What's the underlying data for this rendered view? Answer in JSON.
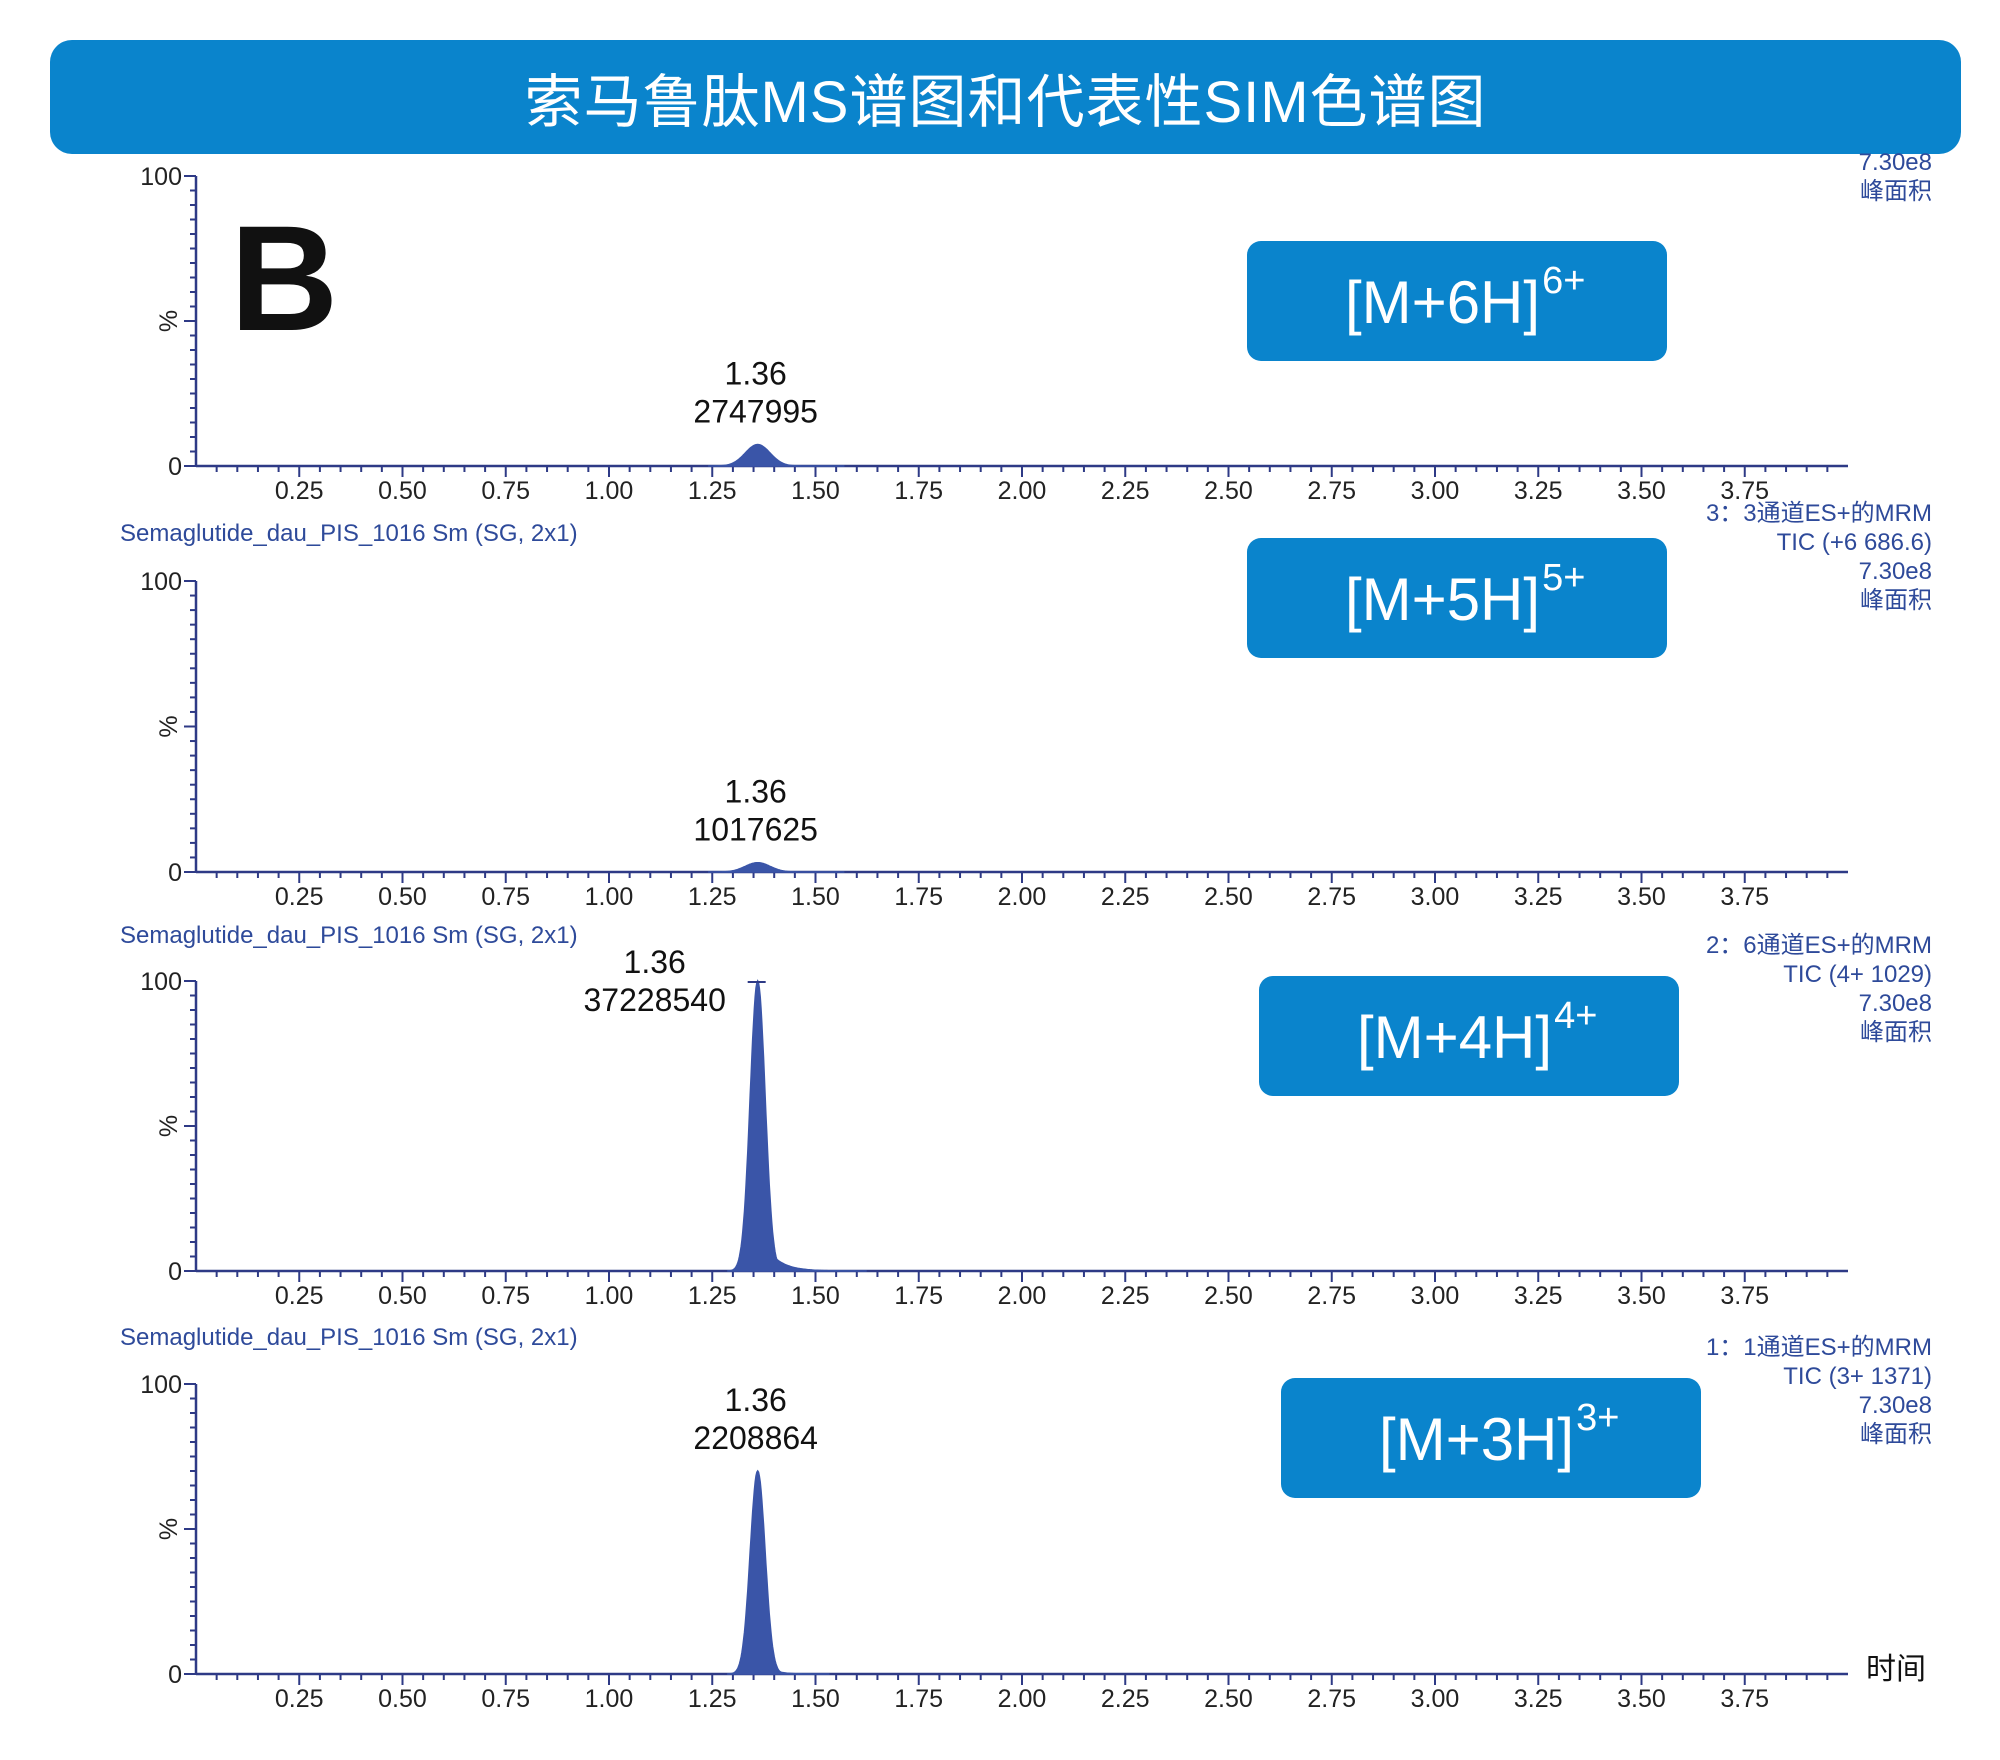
{
  "title": "索马鲁肽MS谱图和代表性SIM色谱图",
  "panel_letter": "B",
  "colors": {
    "banner": "#0a84cc",
    "peak": "#3a55a8",
    "axis": "#2e3a86",
    "meta_text": "#2e4a9a"
  },
  "chart_data": [
    {
      "type": "line",
      "ion": "[M+6H]",
      "charge": "6+",
      "sample": "",
      "meta_lines": [
        "7.30e8",
        "峰面积"
      ],
      "y_ticks": [
        "0",
        "%",
        "100"
      ],
      "x_ticks": [
        "0.25",
        "0.50",
        "0.75",
        "1.00",
        "1.25",
        "1.50",
        "1.75",
        "2.00",
        "2.25",
        "2.50",
        "2.75",
        "3.00",
        "3.25",
        "3.50",
        "3.75"
      ],
      "xlim": [
        0,
        4.0
      ],
      "ylim": [
        0,
        100
      ],
      "peak": {
        "rt": 1.36,
        "rt_label": "1.36",
        "area_label": "2747995",
        "height_pct": 7.4,
        "width": 0.03,
        "tail": 0.02
      },
      "xlabel": ""
    },
    {
      "type": "line",
      "ion": "[M+5H]",
      "charge": "5+",
      "sample": "Semaglutide_dau_PIS_1016 Sm (SG, 2x1)",
      "meta_lines": [
        "3：3通道ES+的MRM",
        "TIC (+6 686.6)",
        "7.30e8",
        "峰面积"
      ],
      "y_ticks": [
        "0",
        "%",
        "100"
      ],
      "x_ticks": [
        "0.25",
        "0.50",
        "0.75",
        "1.00",
        "1.25",
        "1.50",
        "1.75",
        "2.00",
        "2.25",
        "2.50",
        "2.75",
        "3.00",
        "3.25",
        "3.50",
        "3.75"
      ],
      "xlim": [
        0,
        4.0
      ],
      "ylim": [
        0,
        100
      ],
      "peak": {
        "rt": 1.36,
        "rt_label": "1.36",
        "area_label": "1017625",
        "height_pct": 3.2,
        "width": 0.03,
        "tail": 0.02
      },
      "xlabel": ""
    },
    {
      "type": "line",
      "ion": "[M+4H]",
      "charge": "4+",
      "sample": "Semaglutide_dau_PIS_1016 Sm (SG, 2x1)",
      "meta_lines": [
        "2：6通道ES+的MRM",
        "TIC (4+ 1029)",
        "7.30e8",
        "峰面积"
      ],
      "y_ticks": [
        "0",
        "%",
        "100"
      ],
      "x_ticks": [
        "0.25",
        "0.50",
        "0.75",
        "1.00",
        "1.25",
        "1.50",
        "1.75",
        "2.00",
        "2.25",
        "2.50",
        "2.75",
        "3.00",
        "3.25",
        "3.50",
        "3.75"
      ],
      "xlim": [
        0,
        4.0
      ],
      "ylim": [
        0,
        100
      ],
      "peak": {
        "rt": 1.36,
        "rt_label": "1.36",
        "area_label": "37228540",
        "height_pct": 100,
        "width": 0.018,
        "tail": 0.035
      },
      "xlabel": ""
    },
    {
      "type": "line",
      "ion": "[M+3H]",
      "charge": "3+",
      "sample": "Semaglutide_dau_PIS_1016 Sm (SG, 2x1)",
      "meta_lines": [
        "1：1通道ES+的MRM",
        "TIC (3+ 1371)",
        "7.30e8",
        "峰面积"
      ],
      "y_ticks": [
        "0",
        "%",
        "100"
      ],
      "x_ticks": [
        "0.25",
        "0.50",
        "0.75",
        "1.00",
        "1.25",
        "1.50",
        "1.75",
        "2.00",
        "2.25",
        "2.50",
        "2.75",
        "3.00",
        "3.25",
        "3.50",
        "3.75"
      ],
      "xlim": [
        0,
        4.0
      ],
      "ylim": [
        0,
        100
      ],
      "peak": {
        "rt": 1.36,
        "rt_label": "1.36",
        "area_label": "2208864",
        "height_pct": 70,
        "width": 0.018,
        "tail": 0.02
      },
      "xlabel": "时间"
    }
  ]
}
